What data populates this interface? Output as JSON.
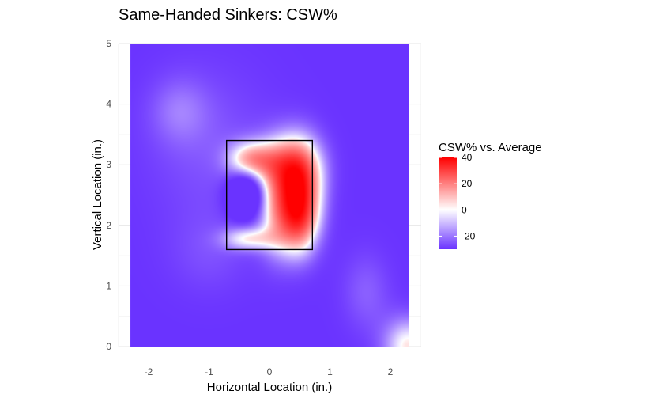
{
  "chart_data": {
    "type": "heatmap",
    "title": "Same-Handed Sinkers: CSW%",
    "xlabel": "Horizontal Location (in.)",
    "ylabel": "Vertical Location (in.)",
    "xlim": [
      -2.3,
      2.3
    ],
    "ylim": [
      0,
      5
    ],
    "x_ticks": [
      -2,
      -1,
      0,
      1,
      2
    ],
    "y_ticks": [
      0,
      1,
      2,
      3,
      4,
      5
    ],
    "grid": true,
    "legend": {
      "title": "CSW% vs. Average",
      "position": "right",
      "ticks": [
        40,
        20,
        0,
        -20
      ],
      "range": [
        -30,
        40
      ]
    },
    "color_scale": {
      "low": "#6a33ff",
      "mid": "#ffffff",
      "high": "#ff0000"
    },
    "strike_zone": {
      "x": [
        -0.71,
        0.71
      ],
      "y": [
        1.6,
        3.4
      ]
    },
    "surface": [
      {
        "x": 0.1,
        "y": 2.25,
        "sx": 0.22,
        "sy": 0.55,
        "amp": 26
      },
      {
        "x": 0.48,
        "y": 2.1,
        "sx": 0.24,
        "sy": 0.45,
        "amp": 40
      },
      {
        "x": 0.35,
        "y": 3.0,
        "sx": 0.34,
        "sy": 0.38,
        "amp": 36
      },
      {
        "x": -0.3,
        "y": 3.08,
        "sx": 0.28,
        "sy": 0.22,
        "amp": 34
      },
      {
        "x": 0.55,
        "y": 2.6,
        "sx": 0.26,
        "sy": 0.55,
        "amp": 30
      },
      {
        "x": -0.35,
        "y": 1.78,
        "sx": 0.3,
        "sy": 0.14,
        "amp": 26
      },
      {
        "x": -0.4,
        "y": 2.5,
        "sx": 0.2,
        "sy": 0.25,
        "amp": -35
      },
      {
        "x": -1.0,
        "y": 3.3,
        "sx": 0.8,
        "sy": 1.0,
        "amp": 8
      },
      {
        "x": -1.5,
        "y": 3.9,
        "sx": 0.35,
        "sy": 0.4,
        "amp": 10
      },
      {
        "x": -1.0,
        "y": 1.5,
        "sx": 0.5,
        "sy": 0.5,
        "amp": 6
      },
      {
        "x": 1.6,
        "y": 0.9,
        "sx": 0.3,
        "sy": 0.5,
        "amp": 10
      },
      {
        "x": 2.3,
        "y": 0.0,
        "sx": 0.3,
        "sy": 0.35,
        "amp": 32
      }
    ],
    "base_value": -30
  }
}
